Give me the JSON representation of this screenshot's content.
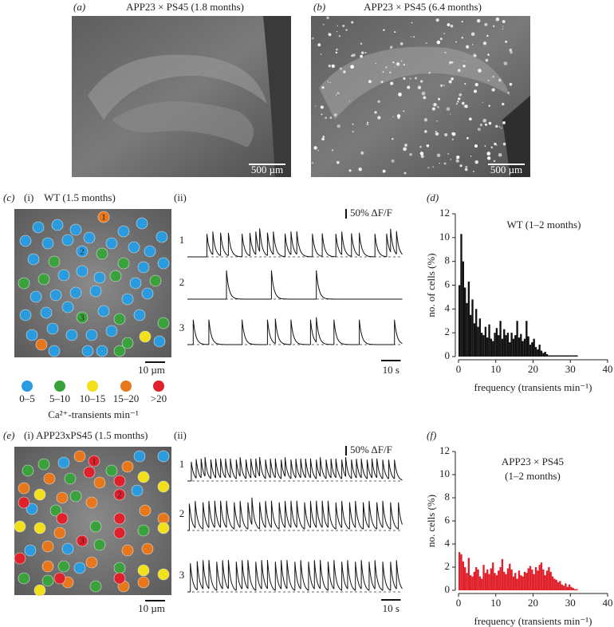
{
  "panels": {
    "a": {
      "label": "(a)",
      "title": "APP23 × PS45 (1.8 months)",
      "scale": "500 µm"
    },
    "b": {
      "label": "(b)",
      "title": "APP23 × PS45 (6.4 months)",
      "scale": "500 µm"
    },
    "c": {
      "label": "(c)",
      "sub_i": "(i)",
      "title": "WT (1.5 months)",
      "scale": "10 µm",
      "cell_numbers": [
        "1",
        "2",
        "3"
      ],
      "sub_ii": "(ii)",
      "trace_labels": [
        "1",
        "2",
        "3"
      ],
      "df_scale": {
        "value": 50,
        "label": "50% ΔF/F"
      },
      "time_scale": {
        "value": 10,
        "label": "10 s"
      },
      "traces": [
        {
          "amplitude": 120,
          "spikes": [
            10,
            13,
            17,
            21,
            28,
            32,
            35,
            37,
            41,
            44,
            50,
            53,
            56,
            64,
            69,
            76,
            79,
            84,
            88,
            96,
            102,
            104,
            107
          ]
        },
        {
          "amplitude": 150,
          "spikes": [
            20,
            43,
            66
          ]
        },
        {
          "amplitude": 130,
          "spikes": [
            3,
            11,
            28,
            41,
            45,
            53,
            63,
            66,
            75,
            88,
            106
          ]
        }
      ]
    },
    "legend": {
      "classes": [
        {
          "label": "0–5",
          "color": "#2b9be0"
        },
        {
          "label": "5–10",
          "color": "#3aa23a"
        },
        {
          "label": "10–15",
          "color": "#f2e11a"
        },
        {
          "label": "15–20",
          "color": "#e8771c"
        },
        {
          "label": ">20",
          "color": "#e0202a"
        }
      ],
      "caption": "Ca²⁺-transients min⁻¹"
    },
    "e": {
      "label": "(e)",
      "sub_i": "(i)",
      "title": "APP23xPS45 (1.5 months)",
      "scale": "10 µm",
      "cell_numbers": [
        "1",
        "2",
        "3"
      ],
      "sub_ii": "(ii)",
      "trace_labels": [
        "1",
        "2",
        "3"
      ],
      "df_scale": {
        "value": 50,
        "label": "50% ΔF/F"
      },
      "time_scale": {
        "value": 10,
        "label": "10 s"
      },
      "traces": [
        {
          "amplitude": 100,
          "spikes": [
            2,
            4.5,
            7,
            9,
            12,
            14.5,
            17,
            19.5,
            22,
            25,
            27,
            30,
            32.5,
            35,
            37,
            40,
            42.5,
            45,
            48,
            50,
            53,
            55.5,
            58,
            60.5,
            63,
            66,
            68,
            71,
            73.5,
            76,
            79,
            81,
            84,
            86.5,
            89,
            92,
            94.5,
            97,
            100,
            103,
            106
          ]
        },
        {
          "amplitude": 140,
          "spikes": [
            1,
            4,
            8,
            11,
            14,
            17,
            20,
            24,
            27,
            31,
            33,
            37,
            40,
            43,
            47,
            50,
            53,
            56,
            60,
            63,
            66,
            69,
            72,
            76,
            79,
            83,
            86,
            90,
            93,
            97,
            100,
            104,
            108
          ]
        },
        {
          "amplitude": 150,
          "spikes": [
            1.5,
            5,
            8,
            11,
            15,
            18,
            21,
            25,
            28,
            31,
            35,
            38,
            41,
            45,
            48,
            51,
            55,
            58,
            62,
            65,
            68,
            72,
            75,
            79,
            82,
            86,
            89,
            93,
            96,
            100,
            104,
            107
          ]
        }
      ]
    }
  },
  "chart_data": [
    {
      "type": "histogram",
      "label": "(d)",
      "title": "WT (1–2 months)",
      "ylabel": "no. of cells (%)",
      "xlabel": "frequency (transients min⁻¹)",
      "color": "#111111",
      "bins": [
        0,
        0.5,
        1,
        1.5,
        2,
        2.5,
        3,
        3.5,
        4,
        4.5,
        5,
        5.5,
        6,
        6.5,
        7,
        7.5,
        8,
        8.5,
        9,
        9.5,
        10,
        10.5,
        11,
        11.5,
        12,
        12.5,
        13,
        13.5,
        14,
        14.5,
        15,
        15.5,
        16,
        16.5,
        17,
        17.5,
        18,
        18.5,
        19,
        19.5,
        20,
        20.5,
        21,
        21.5,
        22,
        22.5,
        23,
        23.5,
        24,
        24.5,
        25,
        25.5,
        26,
        26.5,
        27,
        27.5,
        28,
        28.5,
        29,
        29.5,
        30,
        30.5,
        31,
        31.5,
        32
      ],
      "values": [
        6.0,
        10.3,
        8.0,
        5.8,
        4.5,
        6.3,
        3.5,
        4.8,
        2.8,
        4.0,
        2.5,
        3.2,
        2.0,
        1.8,
        2.5,
        1.6,
        2.7,
        1.5,
        1.3,
        2.0,
        2.4,
        1.8,
        3.0,
        1.5,
        2.3,
        1.8,
        2.0,
        1.2,
        2.0,
        1.5,
        1.8,
        3.0,
        1.6,
        1.9,
        1.3,
        1.5,
        3.0,
        1.7,
        1.0,
        1.2,
        1.5,
        0.8,
        0.6,
        1.0,
        0.5,
        0.3,
        0.4,
        0.2,
        0.1,
        0.1,
        0.1,
        0.1,
        0.1,
        0.1,
        0.1,
        0.1,
        0.1,
        0.1,
        0.1,
        0.1,
        0.1,
        0.1,
        0.1,
        0.1
      ],
      "xlim": [
        0,
        40
      ],
      "ylim": [
        0,
        12
      ],
      "xticks": [
        0,
        10,
        20,
        30,
        40
      ],
      "yticks": [
        0,
        2,
        4,
        6,
        8,
        10,
        12
      ]
    },
    {
      "type": "histogram",
      "label": "(f)",
      "title": "APP23 × PS45",
      "subtitle": "(1–2 months)",
      "ylabel": "no. cells (%)",
      "xlabel": "frequency (transients min⁻¹)",
      "color": "#e0202a",
      "bins": [
        0,
        0.5,
        1,
        1.5,
        2,
        2.5,
        3,
        3.5,
        4,
        4.5,
        5,
        5.5,
        6,
        6.5,
        7,
        7.5,
        8,
        8.5,
        9,
        9.5,
        10,
        10.5,
        11,
        11.5,
        12,
        12.5,
        13,
        13.5,
        14,
        14.5,
        15,
        15.5,
        16,
        16.5,
        17,
        17.5,
        18,
        18.5,
        19,
        19.5,
        20,
        20.5,
        21,
        21.5,
        22,
        22.5,
        23,
        23.5,
        24,
        24.5,
        25,
        25.5,
        26,
        26.5,
        27,
        27.5,
        28,
        28.5,
        29,
        29.5,
        30,
        30.5,
        31,
        31.5,
        32
      ],
      "values": [
        3.3,
        3.1,
        2.5,
        2.0,
        1.5,
        2.8,
        1.3,
        1.2,
        1.6,
        2.0,
        1.8,
        1.2,
        1.0,
        2.2,
        1.5,
        1.8,
        1.4,
        1.9,
        2.4,
        1.5,
        1.3,
        1.7,
        2.0,
        2.7,
        1.6,
        1.4,
        1.9,
        2.3,
        1.8,
        1.2,
        1.5,
        1.0,
        1.7,
        1.3,
        1.2,
        1.6,
        1.5,
        1.9,
        2.1,
        1.8,
        1.4,
        2.0,
        1.7,
        2.2,
        2.4,
        1.8,
        1.3,
        1.7,
        2.0,
        1.6,
        1.2,
        1.0,
        0.9,
        0.7,
        0.8,
        0.5,
        0.4,
        0.6,
        0.3,
        0.5,
        0.3,
        0.2,
        0.1,
        0.1
      ],
      "xlim": [
        0,
        40
      ],
      "ylim": [
        0,
        12
      ],
      "xticks": [
        0,
        10,
        20,
        30,
        40
      ],
      "yticks": [
        0,
        2,
        4,
        6,
        8,
        10,
        12
      ]
    }
  ]
}
